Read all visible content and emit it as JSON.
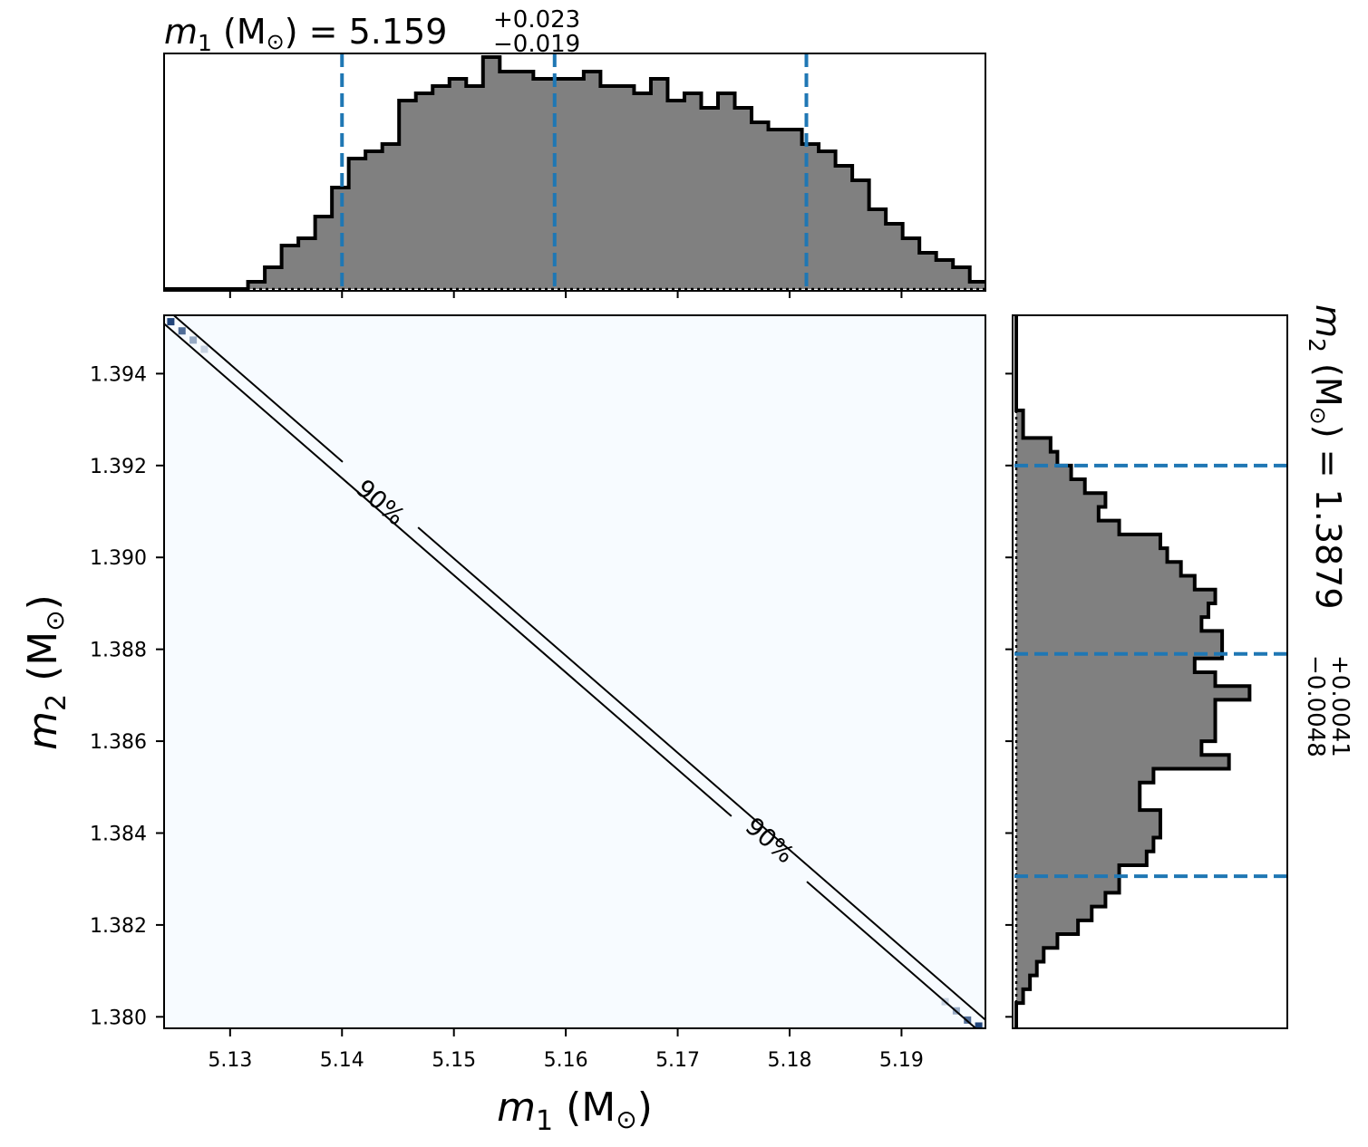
{
  "chart_data": [
    {
      "type": "histogram",
      "panel": "m1 marginal (top)",
      "title": {
        "variable": "m",
        "subscript": "1",
        "unit": " (M",
        "unit_close": ")",
        "equals": " = ",
        "median": "5.159",
        "plus": "+0.023",
        "minus": "−0.019"
      },
      "x_range": [
        5.1241,
        5.1975
      ],
      "bin_edges_start": 5.1241,
      "bin_width": 0.0015,
      "counts": [
        0,
        0,
        0,
        0,
        0,
        1,
        3,
        6,
        7,
        10,
        14,
        18,
        19,
        20,
        26,
        27,
        28,
        29,
        28,
        32,
        30,
        30,
        29,
        29,
        29,
        30,
        28,
        28,
        27,
        29,
        26,
        27,
        25,
        27,
        25,
        23,
        22,
        22,
        20,
        19,
        17,
        15,
        11,
        9,
        7,
        5,
        4,
        3,
        1,
        0,
        0,
        0,
        0,
        0
      ],
      "quantile_lines": [
        5.14,
        5.159,
        5.1815
      ],
      "ylim": [
        0,
        32.5
      ],
      "color": "#808080",
      "edge_color": "#000000",
      "line_color": "#1f77b4"
    },
    {
      "type": "heatmap",
      "panel": "joint m1-m2 (center)",
      "xlabel": {
        "variable": "m",
        "subscript": "1",
        "unit": " (M",
        "unit_close": ")"
      },
      "ylabel": {
        "variable": "m",
        "subscript": "2",
        "unit": " (M",
        "unit_close": ")"
      },
      "xlim": [
        5.1241,
        5.1975
      ],
      "ylim": [
        1.37975,
        1.39527
      ],
      "x_ticks": [
        "5.13",
        "5.14",
        "5.15",
        "5.16",
        "5.17",
        "5.18",
        "5.19"
      ],
      "y_ticks": [
        "1.380",
        "1.382",
        "1.384",
        "1.386",
        "1.388",
        "1.390",
        "1.392",
        "1.394"
      ],
      "background_color": "#f7fbff",
      "contour_label": "90%",
      "high_density_cells": [
        {
          "x": 5.1247,
          "y": 1.39513,
          "level": 0.9
        },
        {
          "x": 5.1257,
          "y": 1.39493,
          "level": 0.7
        },
        {
          "x": 5.1267,
          "y": 1.39473,
          "level": 0.4
        },
        {
          "x": 5.1277,
          "y": 1.39453,
          "level": 0.2
        },
        {
          "x": 5.1939,
          "y": 1.38033,
          "level": 0.2
        },
        {
          "x": 5.1949,
          "y": 1.38013,
          "level": 0.4
        },
        {
          "x": 5.1959,
          "y": 1.37993,
          "level": 0.7
        },
        {
          "x": 5.1969,
          "y": 1.3798,
          "level": 0.9
        }
      ]
    },
    {
      "type": "histogram",
      "panel": "m2 marginal (right, horizontal)",
      "title": {
        "variable": "m",
        "subscript": "2",
        "unit": " (M",
        "unit_close": ")",
        "equals": " = ",
        "median": "1.3879",
        "plus": "+0.0041",
        "minus": "−0.0048"
      },
      "y_range": [
        1.37975,
        1.39527
      ],
      "bin_edges_start": 1.3797,
      "bin_width": 0.0003,
      "counts": [
        0,
        0,
        1,
        2,
        3,
        4,
        6,
        9,
        11,
        13,
        15,
        15,
        19,
        20,
        21,
        21,
        18,
        18,
        20,
        31,
        27,
        29,
        29,
        29,
        34,
        29,
        26,
        30,
        30,
        27,
        28,
        29,
        26,
        24,
        22,
        21,
        15,
        12,
        13,
        10,
        8,
        6,
        5,
        1,
        1,
        0,
        0,
        0,
        0,
        0,
        0,
        0
      ],
      "quantile_lines": [
        1.38306,
        1.3879,
        1.392
      ],
      "xlim": [
        0,
        39.5
      ],
      "color": "#808080",
      "edge_color": "#000000",
      "line_color": "#1f77b4"
    }
  ]
}
